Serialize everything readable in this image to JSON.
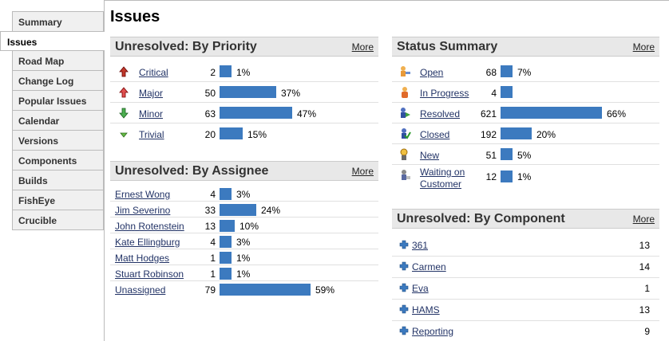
{
  "sidebar": {
    "items": [
      {
        "label": "Summary",
        "name": "summary"
      },
      {
        "label": "Issues",
        "name": "issues",
        "active": true
      },
      {
        "label": "Road Map",
        "name": "road-map"
      },
      {
        "label": "Change Log",
        "name": "change-log"
      },
      {
        "label": "Popular Issues",
        "name": "popular-issues"
      },
      {
        "label": "Calendar",
        "name": "calendar"
      },
      {
        "label": "Versions",
        "name": "versions"
      },
      {
        "label": "Components",
        "name": "components"
      },
      {
        "label": "Builds",
        "name": "builds"
      },
      {
        "label": "FishEye",
        "name": "fisheye"
      },
      {
        "label": "Crucible",
        "name": "crucible"
      }
    ]
  },
  "page": {
    "title": "Issues"
  },
  "priority": {
    "title": "Unresolved: By Priority",
    "more": "More",
    "rows": [
      {
        "label": "Critical",
        "count": "2",
        "pct": "1%",
        "fraction": 0.01,
        "icon": "critical-priority-icon"
      },
      {
        "label": "Major",
        "count": "50",
        "pct": "37%",
        "fraction": 0.37,
        "icon": "major-priority-icon"
      },
      {
        "label": "Minor",
        "count": "63",
        "pct": "47%",
        "fraction": 0.47,
        "icon": "minor-priority-icon"
      },
      {
        "label": "Trivial",
        "count": "20",
        "pct": "15%",
        "fraction": 0.15,
        "icon": "trivial-priority-icon"
      }
    ]
  },
  "assignee": {
    "title": "Unresolved: By Assignee",
    "more": "More",
    "rows": [
      {
        "label": "Ernest Wong",
        "count": "4",
        "pct": "3%",
        "fraction": 0.03
      },
      {
        "label": "Jim Severino",
        "count": "33",
        "pct": "24%",
        "fraction": 0.24
      },
      {
        "label": "John Rotenstein",
        "count": "13",
        "pct": "10%",
        "fraction": 0.1
      },
      {
        "label": "Kate Ellingburg",
        "count": "4",
        "pct": "3%",
        "fraction": 0.03
      },
      {
        "label": "Matt Hodges",
        "count": "1",
        "pct": "1%",
        "fraction": 0.01
      },
      {
        "label": "Stuart Robinson",
        "count": "1",
        "pct": "1%",
        "fraction": 0.01
      },
      {
        "label": "Unassigned",
        "count": "79",
        "pct": "59%",
        "fraction": 0.59
      }
    ]
  },
  "status": {
    "title": "Status Summary",
    "more": "More",
    "rows": [
      {
        "label": "Open",
        "count": "68",
        "pct": "7%",
        "fraction": 0.07,
        "icon": "open-status-icon"
      },
      {
        "label": "In Progress",
        "count": "4",
        "pct": "",
        "fraction": 0.004,
        "icon": "in-progress-status-icon"
      },
      {
        "label": "Resolved",
        "count": "621",
        "pct": "66%",
        "fraction": 0.66,
        "icon": "resolved-status-icon"
      },
      {
        "label": "Closed",
        "count": "192",
        "pct": "20%",
        "fraction": 0.2,
        "icon": "closed-status-icon"
      },
      {
        "label": "New",
        "count": "51",
        "pct": "5%",
        "fraction": 0.05,
        "icon": "new-status-icon"
      },
      {
        "label": "Waiting on",
        "label2": "Customer",
        "count": "12",
        "pct": "1%",
        "fraction": 0.01,
        "icon": "waiting-status-icon"
      }
    ]
  },
  "component": {
    "title": "Unresolved: By Component",
    "more": "More",
    "rows": [
      {
        "label": "361",
        "count": "13"
      },
      {
        "label": "Carmen",
        "count": "14"
      },
      {
        "label": "Eva",
        "count": "1"
      },
      {
        "label": "HAMS",
        "count": "13"
      },
      {
        "label": "Reporting",
        "count": "9"
      }
    ]
  },
  "colors": {
    "bar": "#3c7abf",
    "link": "#223366"
  }
}
